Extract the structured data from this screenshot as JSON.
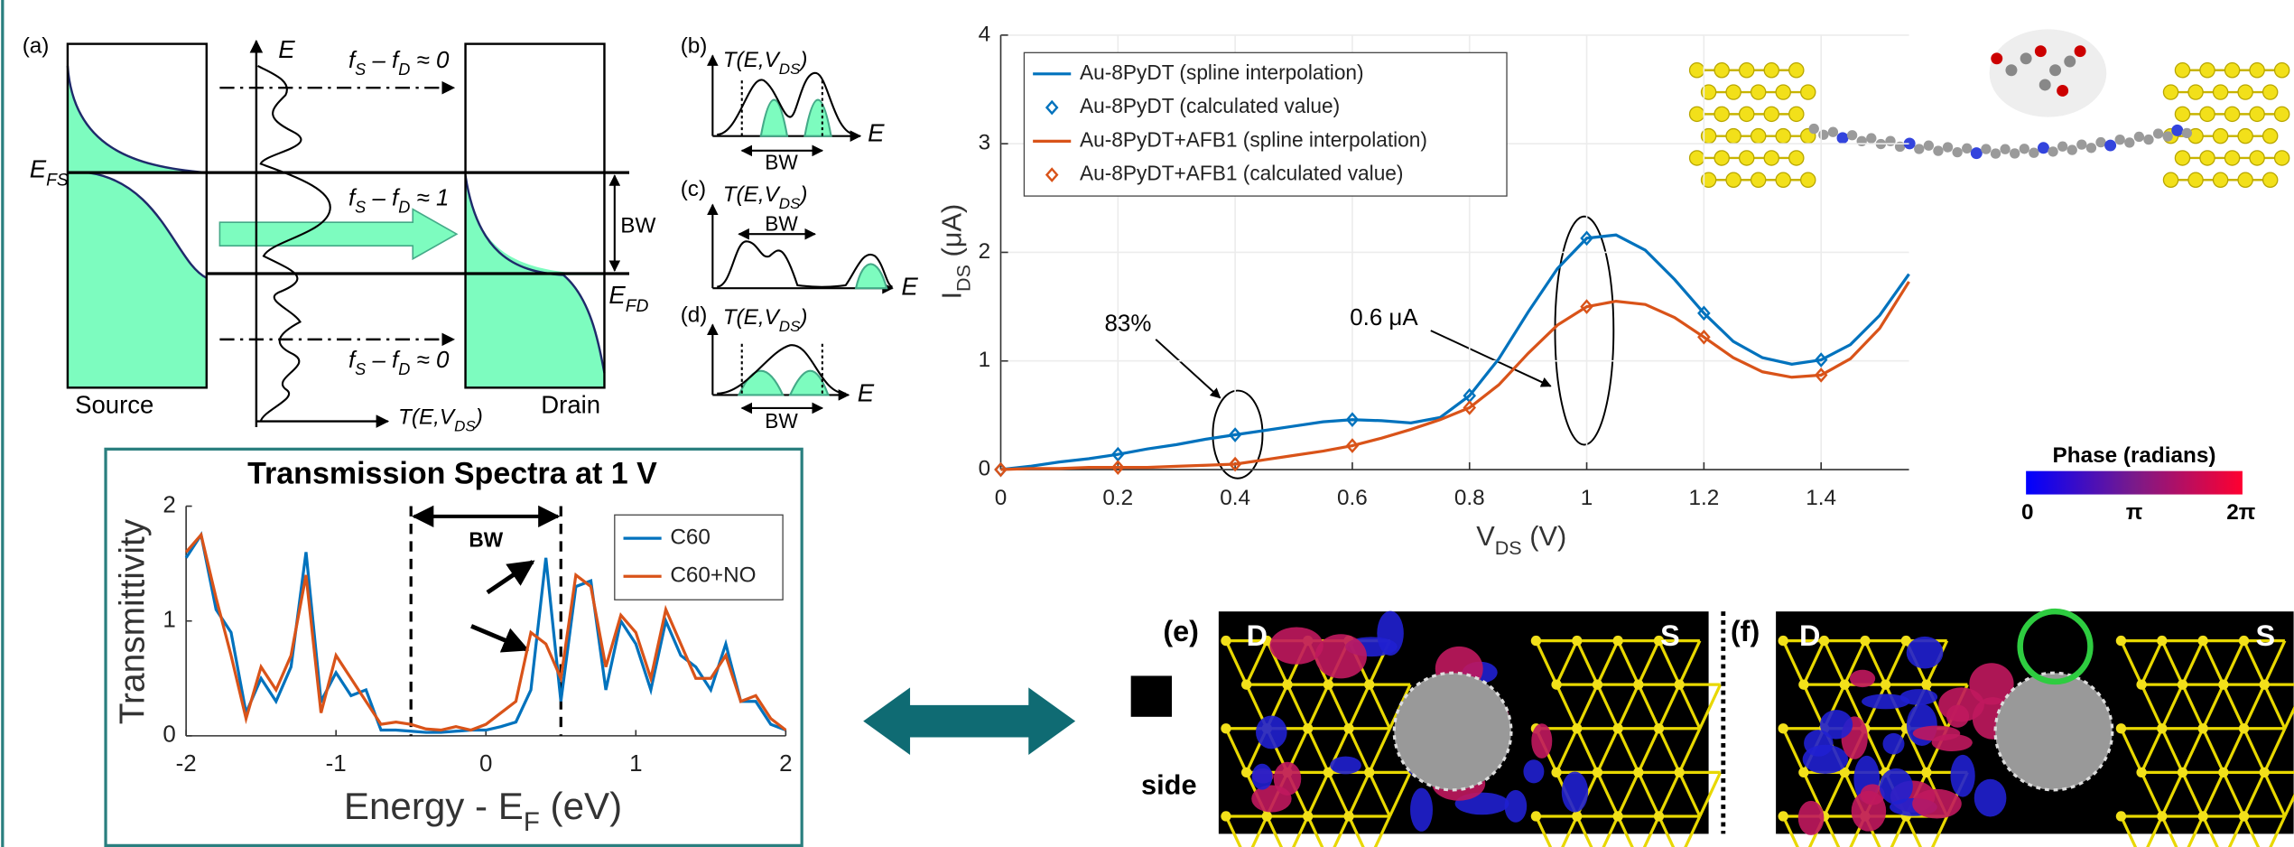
{
  "chart_data": [
    {
      "type": "line",
      "xlabel": [
        "V",
        "DS",
        " (V)"
      ],
      "ylabel": [
        "I",
        "DS",
        " (μA)"
      ],
      "xlim": [
        0,
        1.55
      ],
      "ylim": [
        0,
        4
      ],
      "xticks": [
        0,
        0.2,
        0.4,
        0.6,
        0.8,
        1,
        1.2,
        1.4
      ],
      "yticks": [
        0,
        1,
        2,
        3,
        4
      ],
      "grid": true,
      "annotations": [
        "83%",
        "0.6 μA"
      ],
      "series": [
        {
          "name": "Au-8PyDT (spline interpolation)",
          "color": "#0072bd",
          "style": "line",
          "x": [
            0,
            0.05,
            0.1,
            0.15,
            0.2,
            0.25,
            0.3,
            0.35,
            0.4,
            0.45,
            0.5,
            0.55,
            0.6,
            0.65,
            0.7,
            0.75,
            0.8,
            0.85,
            0.9,
            0.95,
            1,
            1.05,
            1.1,
            1.15,
            1.2,
            1.25,
            1.3,
            1.35,
            1.4,
            1.45,
            1.5,
            1.55
          ],
          "values": [
            0,
            0.03,
            0.07,
            0.1,
            0.14,
            0.19,
            0.23,
            0.28,
            0.32,
            0.36,
            0.4,
            0.44,
            0.46,
            0.45,
            0.43,
            0.48,
            0.68,
            1.02,
            1.45,
            1.85,
            2.13,
            2.16,
            2.02,
            1.75,
            1.44,
            1.18,
            1.03,
            0.97,
            1.01,
            1.15,
            1.42,
            1.8
          ]
        },
        {
          "name": "Au-8PyDT (calculated value)",
          "color": "#0072bd",
          "style": "markers",
          "x": [
            0,
            0.2,
            0.4,
            0.6,
            0.8,
            1,
            1.2,
            1.4
          ],
          "values": [
            0,
            0.14,
            0.32,
            0.46,
            0.68,
            2.13,
            1.44,
            1.01
          ]
        },
        {
          "name": "Au-8PyDT+AFB1 (spline interpolation)",
          "color": "#d95319",
          "style": "line",
          "x": [
            0,
            0.05,
            0.1,
            0.15,
            0.2,
            0.25,
            0.3,
            0.35,
            0.4,
            0.45,
            0.5,
            0.55,
            0.6,
            0.65,
            0.7,
            0.75,
            0.8,
            0.85,
            0.9,
            0.95,
            1,
            1.05,
            1.1,
            1.15,
            1.2,
            1.25,
            1.3,
            1.35,
            1.4,
            1.45,
            1.5,
            1.55
          ],
          "values": [
            0,
            0.01,
            0.01,
            0.02,
            0.02,
            0.02,
            0.03,
            0.04,
            0.05,
            0.09,
            0.13,
            0.17,
            0.22,
            0.29,
            0.37,
            0.46,
            0.57,
            0.78,
            1.07,
            1.33,
            1.5,
            1.55,
            1.52,
            1.4,
            1.22,
            1.03,
            0.9,
            0.85,
            0.87,
            1.02,
            1.3,
            1.73
          ]
        },
        {
          "name": "Au-8PyDT+AFB1 (calculated value)",
          "color": "#d95319",
          "style": "markers",
          "x": [
            0,
            0.2,
            0.4,
            0.6,
            0.8,
            1,
            1.2,
            1.4
          ],
          "values": [
            0,
            0.02,
            0.05,
            0.22,
            0.57,
            1.5,
            1.22,
            0.87
          ]
        }
      ]
    },
    {
      "type": "line",
      "title": "Transmission Spectra at 1 V",
      "xlabel": [
        "Energy - E",
        "F",
        " (eV)"
      ],
      "ylabel": [
        "Transmittivity"
      ],
      "xlim": [
        -2,
        2
      ],
      "ylim": [
        0,
        2
      ],
      "xticks": [
        -2,
        -1,
        0,
        1,
        2
      ],
      "yticks": [
        0,
        1,
        2
      ],
      "grid": false,
      "bw_label": "BW",
      "bw_bounds": [
        -0.5,
        0.5
      ],
      "series": [
        {
          "name": "C60",
          "color": "#0072bd",
          "style": "line",
          "x": [
            -2,
            -1.9,
            -1.8,
            -1.7,
            -1.6,
            -1.5,
            -1.4,
            -1.3,
            -1.2,
            -1.1,
            -1,
            -0.9,
            -0.8,
            -0.7,
            -0.6,
            -0.5,
            -0.4,
            -0.3,
            -0.2,
            -0.1,
            0,
            0.1,
            0.2,
            0.3,
            0.4,
            0.5,
            0.6,
            0.7,
            0.8,
            0.9,
            1,
            1.1,
            1.2,
            1.3,
            1.4,
            1.5,
            1.6,
            1.7,
            1.8,
            1.9,
            2
          ],
          "values": [
            1.55,
            1.75,
            1.1,
            0.9,
            0.2,
            0.5,
            0.3,
            0.6,
            1.6,
            0.3,
            0.55,
            0.35,
            0.4,
            0.05,
            0.05,
            0.04,
            0.03,
            0.03,
            0.04,
            0.05,
            0.05,
            0.08,
            0.12,
            0.4,
            1.55,
            0.3,
            1.3,
            1.35,
            0.4,
            1,
            0.8,
            0.4,
            1,
            0.7,
            0.6,
            0.4,
            0.8,
            0.3,
            0.3,
            0.1,
            0.05
          ]
        },
        {
          "name": "C60+NO",
          "color": "#d95319",
          "style": "line",
          "x": [
            -2,
            -1.9,
            -1.8,
            -1.7,
            -1.6,
            -1.5,
            -1.4,
            -1.3,
            -1.2,
            -1.1,
            -1,
            -0.9,
            -0.8,
            -0.7,
            -0.6,
            -0.5,
            -0.4,
            -0.3,
            -0.2,
            -0.1,
            0,
            0.1,
            0.2,
            0.3,
            0.4,
            0.5,
            0.6,
            0.7,
            0.8,
            0.9,
            1,
            1.1,
            1.2,
            1.3,
            1.4,
            1.5,
            1.6,
            1.7,
            1.8,
            1.9,
            2
          ],
          "values": [
            1.6,
            1.75,
            1.2,
            0.7,
            0.15,
            0.6,
            0.4,
            0.7,
            1.4,
            0.2,
            0.7,
            0.5,
            0.3,
            0.1,
            0.12,
            0.1,
            0.06,
            0.05,
            0.08,
            0.05,
            0.1,
            0.2,
            0.3,
            0.9,
            0.8,
            0.5,
            1.4,
            1.3,
            0.6,
            1.05,
            0.9,
            0.5,
            1.1,
            0.8,
            0.5,
            0.5,
            0.7,
            0.3,
            0.35,
            0.15,
            0.05
          ]
        }
      ]
    }
  ],
  "schematic": {
    "panel_a": {
      "label": "(a)",
      "energy": "E",
      "top": [
        "f",
        "S",
        " – f",
        "D",
        " ≈ 0"
      ],
      "efs": [
        "E",
        "FS"
      ],
      "middle": [
        "f",
        "S",
        " – f",
        "D",
        " ≈ 1"
      ],
      "bw": "BW",
      "efd": [
        "E",
        "FD"
      ],
      "bottom": [
        "f",
        "S",
        " – f",
        "D",
        " ≈ 0"
      ],
      "source": "Source",
      "transmission": [
        "T(E,V",
        "DS",
        ")"
      ],
      "drain": "Drain"
    },
    "panels": [
      {
        "label": "(b)",
        "transmission": [
          "T(E,V",
          "DS",
          ")"
        ],
        "bw": "BW",
        "energy": "E"
      },
      {
        "label": "(c)",
        "transmission": [
          "T(E,V",
          "DS",
          ")"
        ],
        "bw": "BW",
        "energy": "E"
      },
      {
        "label": "(d)",
        "transmission": [
          "T(E,V",
          "DS",
          ")"
        ],
        "bw": "BW",
        "energy": "E"
      }
    ]
  },
  "images": {
    "colorbar": {
      "title": "Phase (radians)",
      "ticks": [
        "0",
        "π",
        "2π"
      ]
    },
    "panels": [
      {
        "label": "(e)",
        "left": "D",
        "right": "S",
        "view": "side"
      },
      {
        "label": "(f)",
        "left": "D",
        "right": "S"
      }
    ]
  }
}
